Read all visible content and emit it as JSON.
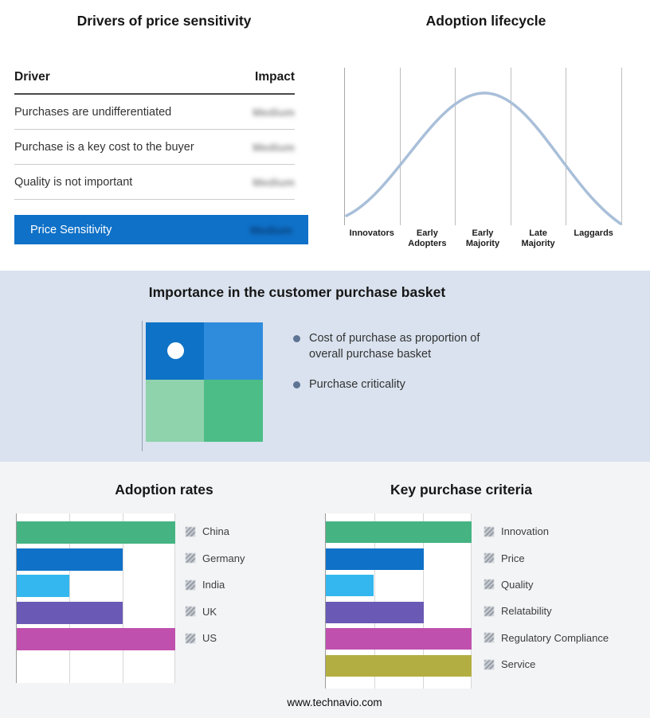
{
  "footer": {
    "url_text": "www.technavio.com"
  },
  "drivers_panel": {
    "title": "Drivers of price sensitivity",
    "header": {
      "driver": "Driver",
      "impact": "Impact"
    },
    "rows": [
      {
        "driver": "Purchases are undifferentiated",
        "impact": "Medium"
      },
      {
        "driver": "Purchase is a key cost to the buyer",
        "impact": "Medium"
      },
      {
        "driver": "Quality is not important",
        "impact": "Medium"
      }
    ],
    "summary": {
      "label": "Price Sensitivity",
      "impact": "Medium",
      "bg_color": "#0f71c8"
    },
    "impact_values_blurred": true
  },
  "basket_panel": {
    "title": "Importance in the customer purchase basket",
    "bullets": [
      "Cost of purchase as proportion of overall purchase basket",
      "Purchase criticality"
    ],
    "quadrant_colors": {
      "top_left": "#0e72c6",
      "top_right": "#2f8cdc",
      "bottom_left": "#8fd3ac",
      "bottom_right": "#4cbd86"
    },
    "bg_color": "#d9e2ee"
  },
  "chart_data": [
    {
      "id": "adoption_lifecycle",
      "type": "line",
      "title": "Adoption lifecycle",
      "x_categories": [
        "Innovators",
        "Early Adopters",
        "Early Majority",
        "Late Majority",
        "Laggards"
      ],
      "curve_shape": "bell curve peaking at Early Majority",
      "curve_points_norm": [
        [
          0,
          0.05
        ],
        [
          0.2,
          0.45
        ],
        [
          0.35,
          0.85
        ],
        [
          0.5,
          1.0
        ],
        [
          0.65,
          0.8
        ],
        [
          0.8,
          0.42
        ],
        [
          1.0,
          0.02
        ]
      ],
      "curve_color": "#a9bfd9",
      "grid": true,
      "legend_position": "none"
    },
    {
      "id": "adoption_rates",
      "type": "bar",
      "orientation": "horizontal",
      "title": "Adoption rates",
      "categories": [
        "China",
        "Germany",
        "India",
        "UK",
        "US"
      ],
      "values": [
        100,
        67,
        33,
        67,
        100
      ],
      "xlim": [
        0,
        100
      ],
      "unit": "relative index",
      "colors": [
        "#45b482",
        "#0f71c8",
        "#33b7ee",
        "#6a59b5",
        "#c050ae"
      ],
      "grid": true,
      "legend_position": "right"
    },
    {
      "id": "key_purchase_criteria",
      "type": "bar",
      "orientation": "horizontal",
      "title": "Key purchase criteria",
      "categories": [
        "Innovation",
        "Price",
        "Quality",
        "Relatability",
        "Regulatory Compliance",
        "Service"
      ],
      "values": [
        100,
        67,
        33,
        67,
        100,
        100
      ],
      "xlim": [
        0,
        100
      ],
      "unit": "relative index",
      "colors": [
        "#45b482",
        "#0f71c8",
        "#33b7ee",
        "#6a59b5",
        "#c050ae",
        "#b3ae41"
      ],
      "grid": true,
      "legend_position": "right"
    }
  ]
}
